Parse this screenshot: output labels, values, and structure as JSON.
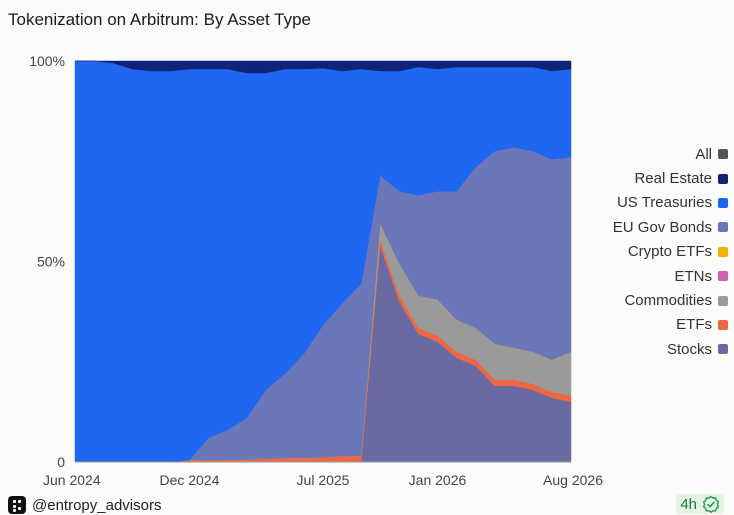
{
  "header": {
    "title": "Tokenization on Arbitrum: By Asset Type"
  },
  "chart_data": {
    "type": "area",
    "stacked_percent": true,
    "title": "Tokenization on Arbitrum: By Asset Type",
    "x_ticks": [
      "Jun 2024",
      "Dec 2024",
      "Jul 2025",
      "Jan 2026",
      "Aug 2026"
    ],
    "y_ticks": [
      "0",
      "50%",
      "100%"
    ],
    "ylim": [
      0,
      100
    ],
    "legend_position": "right",
    "legend": [
      {
        "name": "All",
        "color": "#555555"
      },
      {
        "name": "Real Estate",
        "color": "#0f2478"
      },
      {
        "name": "US Treasuries",
        "color": "#1f66f0"
      },
      {
        "name": "EU Gov Bonds",
        "color": "#6b77b8"
      },
      {
        "name": "Crypto ETFs",
        "color": "#f0b400"
      },
      {
        "name": "ETNs",
        "color": "#d060b0"
      },
      {
        "name": "Commodities",
        "color": "#9a9a9a"
      },
      {
        "name": "ETFs",
        "color": "#ef6642"
      },
      {
        "name": "Stocks",
        "color": "#6a6aa2"
      }
    ],
    "x": [
      "2024-06",
      "2024-07",
      "2024-08",
      "2024-09",
      "2024-10",
      "2024-11",
      "2024-12",
      "2025-01",
      "2025-02",
      "2025-03",
      "2025-04",
      "2025-05",
      "2025-06",
      "2025-07",
      "2025-08",
      "2025-09",
      "2025-10",
      "2025-11",
      "2025-12",
      "2026-01",
      "2026-02",
      "2026-03",
      "2026-04",
      "2026-05",
      "2026-06",
      "2026-07",
      "2026-08"
    ],
    "series": [
      {
        "name": "Stocks",
        "values": [
          0,
          0,
          0,
          0,
          0,
          0,
          0,
          0,
          0,
          0,
          0,
          0,
          0,
          0,
          0,
          0,
          54,
          40,
          32,
          30,
          26,
          24,
          19,
          19,
          18,
          16,
          15
        ]
      },
      {
        "name": "ETFs",
        "values": [
          0,
          0,
          0,
          0,
          0,
          0,
          0.5,
          0.5,
          0.5,
          0.6,
          0.8,
          1,
          1,
          1.2,
          1.5,
          1.5,
          1.5,
          1.5,
          1.5,
          1.5,
          1.5,
          1.5,
          1.5,
          1.5,
          1.5,
          1.5,
          1.5
        ]
      },
      {
        "name": "Commodities",
        "values": [
          0,
          0,
          0,
          0,
          0,
          0,
          0,
          0,
          0,
          0,
          0,
          0,
          0,
          0,
          0,
          0,
          4,
          8,
          8,
          9,
          8,
          8,
          9,
          8,
          8,
          8,
          11
        ]
      },
      {
        "name": "ETNs",
        "values": [
          0,
          0,
          0,
          0,
          0,
          0,
          0,
          0,
          0,
          0,
          0,
          0,
          0,
          0,
          0,
          0,
          0,
          0,
          0,
          0,
          0,
          0,
          0,
          0,
          0,
          0,
          0
        ]
      },
      {
        "name": "Crypto ETFs",
        "values": [
          0,
          0,
          0,
          0,
          0,
          0,
          0,
          0,
          0,
          0,
          0,
          0,
          0,
          0,
          0,
          0,
          0,
          0,
          0,
          0,
          0,
          0,
          0,
          0,
          0,
          0,
          0
        ]
      },
      {
        "name": "EU Gov Bonds",
        "values": [
          0,
          0,
          0,
          0,
          0,
          0,
          0,
          5.5,
          7.5,
          10.4,
          17.2,
          21,
          26,
          33,
          38,
          43,
          12,
          18,
          25,
          27,
          32,
          40,
          48,
          50,
          50,
          50,
          48.5
        ]
      },
      {
        "name": "US Treasuries",
        "values": [
          100,
          100,
          99.5,
          98,
          97.5,
          97.5,
          97.5,
          92,
          90,
          86,
          79,
          76,
          71,
          64,
          58,
          53.5,
          26,
          30,
          32,
          30.5,
          31,
          25,
          21,
          20,
          21,
          22,
          22
        ]
      },
      {
        "name": "Real Estate",
        "values": [
          0,
          0,
          0.5,
          2,
          2.5,
          2.5,
          2,
          2,
          2,
          3,
          3,
          2,
          2,
          1.8,
          2.5,
          2,
          2.5,
          2.5,
          1.5,
          2,
          1.5,
          1.5,
          1.5,
          1.5,
          1.5,
          2.5,
          2
        ]
      }
    ]
  },
  "footer": {
    "handle": "@entropy_advisors",
    "badge": "4h"
  }
}
